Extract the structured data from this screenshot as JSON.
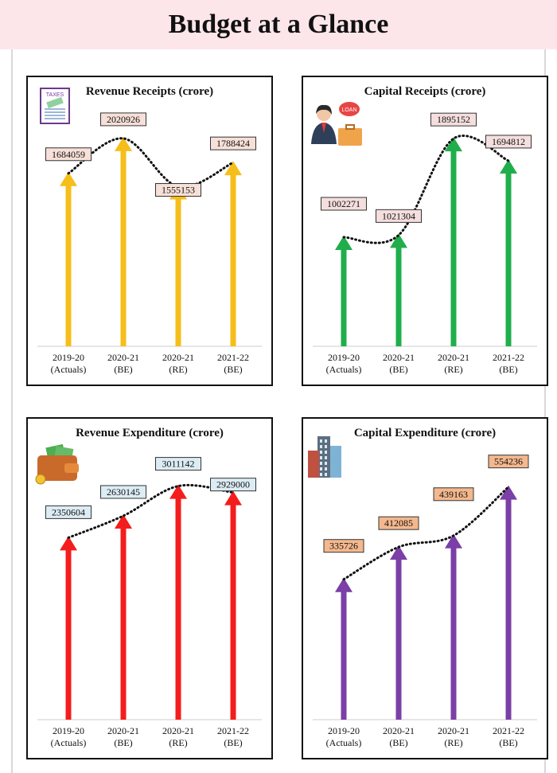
{
  "page": {
    "title": "Budget at a Glance"
  },
  "colors": {
    "banner_bg": "#fde6ea",
    "revenue_receipts": "#f6be1a",
    "capital_receipts": "#1fae4b",
    "revenue_expenditure": "#f41d1d",
    "capital_expenditure": "#7b3fa7",
    "label_bg_receipts": "#f7e0d8",
    "label_bg_capital_receipts": "#f4dede",
    "label_bg_revenue_expenditure": "#dcecf4",
    "label_bg_capital_expenditure": "#f4b88e"
  },
  "chart_data": [
    {
      "type": "bar",
      "title": "Revenue Receipts (crore)",
      "icon": "taxes-form-icon",
      "icon_text": "TAXES",
      "categories": [
        [
          "2019-20",
          "(Actuals)"
        ],
        [
          "2020-21",
          "(BE)"
        ],
        [
          "2020-21",
          "(RE)"
        ],
        [
          "2021-22",
          "(BE)"
        ]
      ],
      "values": [
        1684059,
        2020926,
        1555153,
        1788424
      ],
      "value_labels": [
        "1684059",
        "2020926",
        "1555153",
        "1788424"
      ],
      "ylim": [
        0,
        2120000
      ],
      "color": "#f6be1a",
      "label_bg": "#f7e0d8",
      "trend_line": "dotted"
    },
    {
      "type": "bar",
      "title": "Capital Receipts (crore)",
      "icon": "loan-officer-icon",
      "icon_text": "LOAN",
      "categories": [
        [
          "2019-20",
          "(Actuals)"
        ],
        [
          "2020-21",
          "(BE)"
        ],
        [
          "2020-21",
          "(RE)"
        ],
        [
          "2021-22",
          "(BE)"
        ]
      ],
      "values": [
        1002271,
        1021304,
        1895152,
        1694812
      ],
      "value_labels": [
        "1002271",
        "1021304",
        "1895152",
        "1694812"
      ],
      "ylim": [
        0,
        1990000
      ],
      "color": "#1fae4b",
      "label_bg": "#f4dede",
      "trend_line": "dotted"
    },
    {
      "type": "bar",
      "title": "Revenue Expenditure (crore)",
      "icon": "wallet-money-icon",
      "categories": [
        [
          "2019-20",
          "(Actuals)"
        ],
        [
          "2020-21",
          "(BE)"
        ],
        [
          "2020-21",
          "(RE)"
        ],
        [
          "2021-22",
          "(BE)"
        ]
      ],
      "values": [
        2350604,
        2630145,
        3011142,
        2929000
      ],
      "value_labels": [
        "2350604",
        "2630145",
        "3011142",
        "2929000"
      ],
      "ylim": [
        0,
        3160000
      ],
      "color": "#f41d1d",
      "label_bg": "#dcecf4",
      "trend_line": "dotted"
    },
    {
      "type": "bar",
      "title": "Capital Expenditure (crore)",
      "icon": "city-buildings-icon",
      "categories": [
        [
          "2019-20",
          "(Actuals)"
        ],
        [
          "2020-21",
          "(BE)"
        ],
        [
          "2020-21",
          "(RE)"
        ],
        [
          "2021-22",
          "(BE)"
        ]
      ],
      "values": [
        335726,
        412085,
        439163,
        554236
      ],
      "value_labels": [
        "335726",
        "412085",
        "439163",
        "554236"
      ],
      "ylim": [
        0,
        580000
      ],
      "color": "#7b3fa7",
      "label_bg": "#f4b88e",
      "trend_line": "dotted"
    }
  ]
}
